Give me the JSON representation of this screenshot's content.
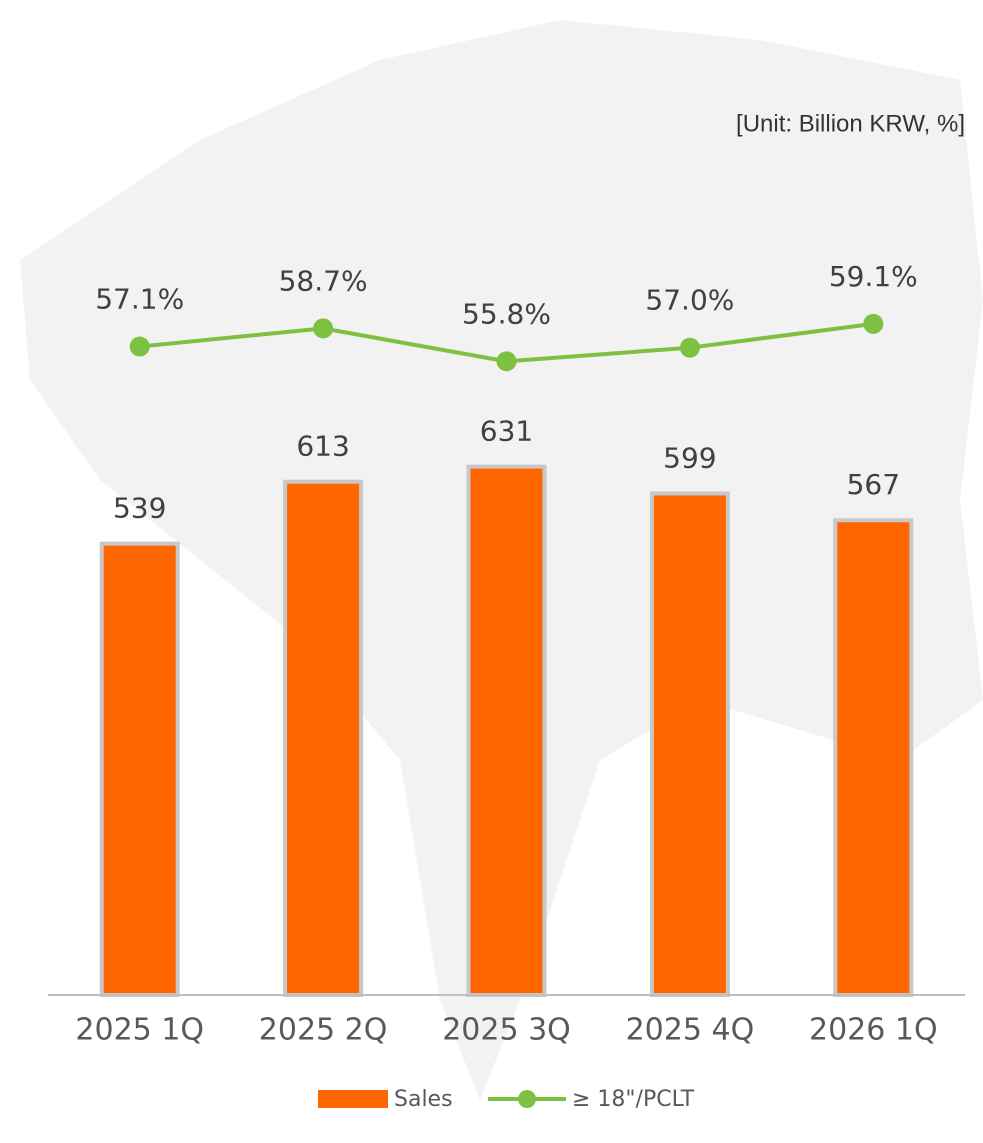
{
  "chart_data": {
    "type": "bar_line",
    "unit_label": "[Unit: Billion KRW, %]",
    "categories": [
      "2025 1Q",
      "2025 2Q",
      "2025 3Q",
      "2025 4Q",
      "2026 1Q"
    ],
    "series": [
      {
        "name": "Sales",
        "type": "bar",
        "color": "#ff6600",
        "values": [
          539,
          613,
          631,
          599,
          567
        ]
      },
      {
        "name": "≥ 18\"/PCLT",
        "type": "line",
        "axis": "y2",
        "color": "#7dc142",
        "values": [
          57.1,
          58.7,
          55.8,
          57.0,
          59.1
        ],
        "value_labels": [
          "57.1%",
          "58.7%",
          "55.8%",
          "57.0%",
          "59.1%"
        ]
      }
    ],
    "ylim": [
      0,
      830
    ],
    "y2lim": [
      0,
      61.2
    ],
    "legend": "bottom"
  }
}
